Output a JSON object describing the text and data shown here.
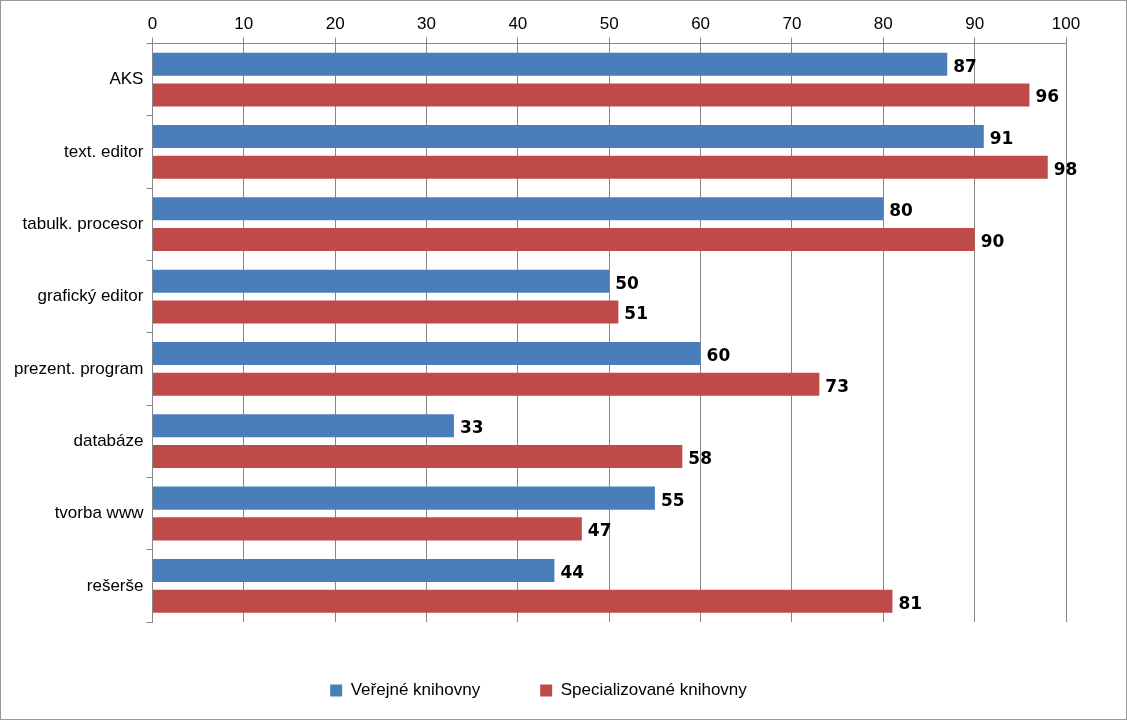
{
  "chart_data": {
    "type": "bar",
    "orientation": "horizontal",
    "categories": [
      "AKS",
      "text. editor",
      "tabulk. procesor",
      "grafický editor",
      "prezent. program",
      "databáze",
      "tvorba www",
      "rešerše"
    ],
    "series": [
      {
        "name": "Veřejné knihovny",
        "color": "#4a7ebb",
        "values": [
          87,
          91,
          80,
          50,
          60,
          33,
          55,
          44
        ]
      },
      {
        "name": "Specializované knihovny",
        "color": "#be4b48",
        "values": [
          96,
          98,
          90,
          51,
          73,
          58,
          47,
          81
        ]
      }
    ],
    "xlim": [
      0,
      100
    ],
    "xticks": [
      0,
      10,
      20,
      30,
      40,
      50,
      60,
      70,
      80,
      90,
      100
    ],
    "grid": "x",
    "legend": "bottom",
    "data_labels": true
  }
}
